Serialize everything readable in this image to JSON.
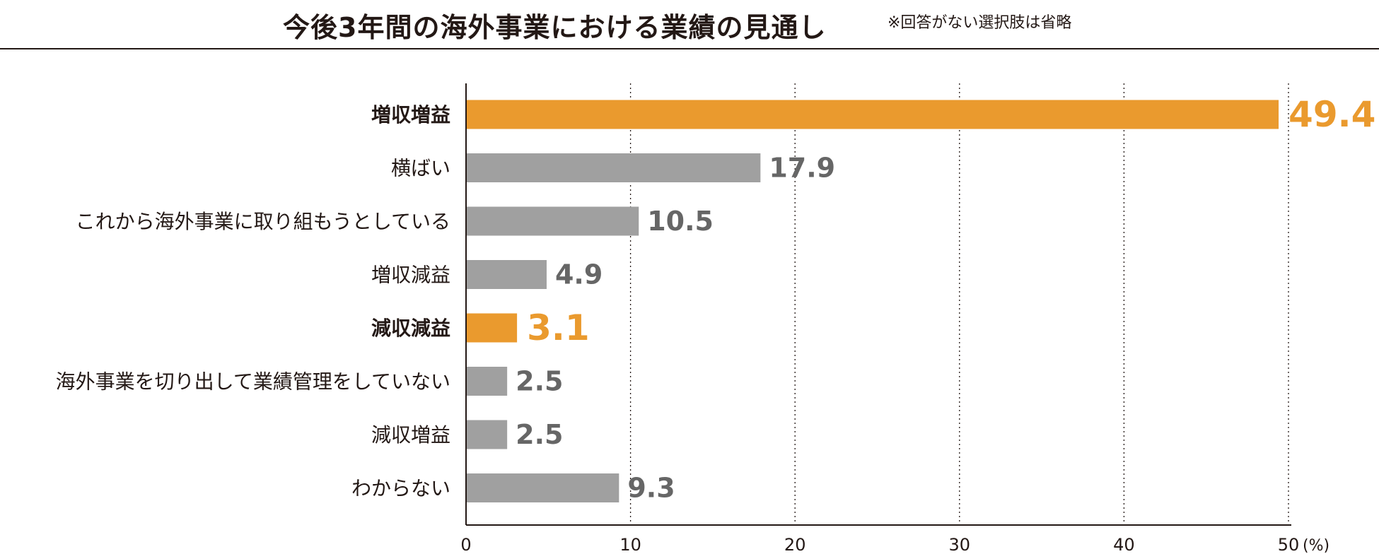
{
  "header": {
    "title": "今後3年間の海外事業における業績の見通し",
    "note": "※回答がない選択肢は省略"
  },
  "chart_data": {
    "type": "bar",
    "orientation": "horizontal",
    "title": "今後3年間の海外事業における業績の見通し",
    "categories": [
      "増収増益",
      "横ばい",
      "これから海外事業に取り組もうとしている",
      "増収減益",
      "減収減益",
      "海外事業を切り出して業績管理をしていない",
      "減収増益",
      "わからない"
    ],
    "values": [
      49.4,
      17.9,
      10.5,
      4.9,
      3.1,
      2.5,
      2.5,
      9.3
    ],
    "value_labels": [
      "49.4",
      "17.9",
      "10.5",
      "4.9",
      "3.1",
      "2.5",
      "2.5",
      "9.3"
    ],
    "highlighted": [
      true,
      false,
      false,
      false,
      true,
      false,
      false,
      false
    ],
    "colors": {
      "highlight": "#EA9A2E",
      "normal": "#A0A0A0",
      "text": "#231815",
      "value_text": "#666666"
    },
    "xlim": [
      0,
      50
    ],
    "xticks": [
      "0",
      "10",
      "20",
      "30",
      "40",
      "50"
    ],
    "xunit": "(%)",
    "grid": true
  }
}
